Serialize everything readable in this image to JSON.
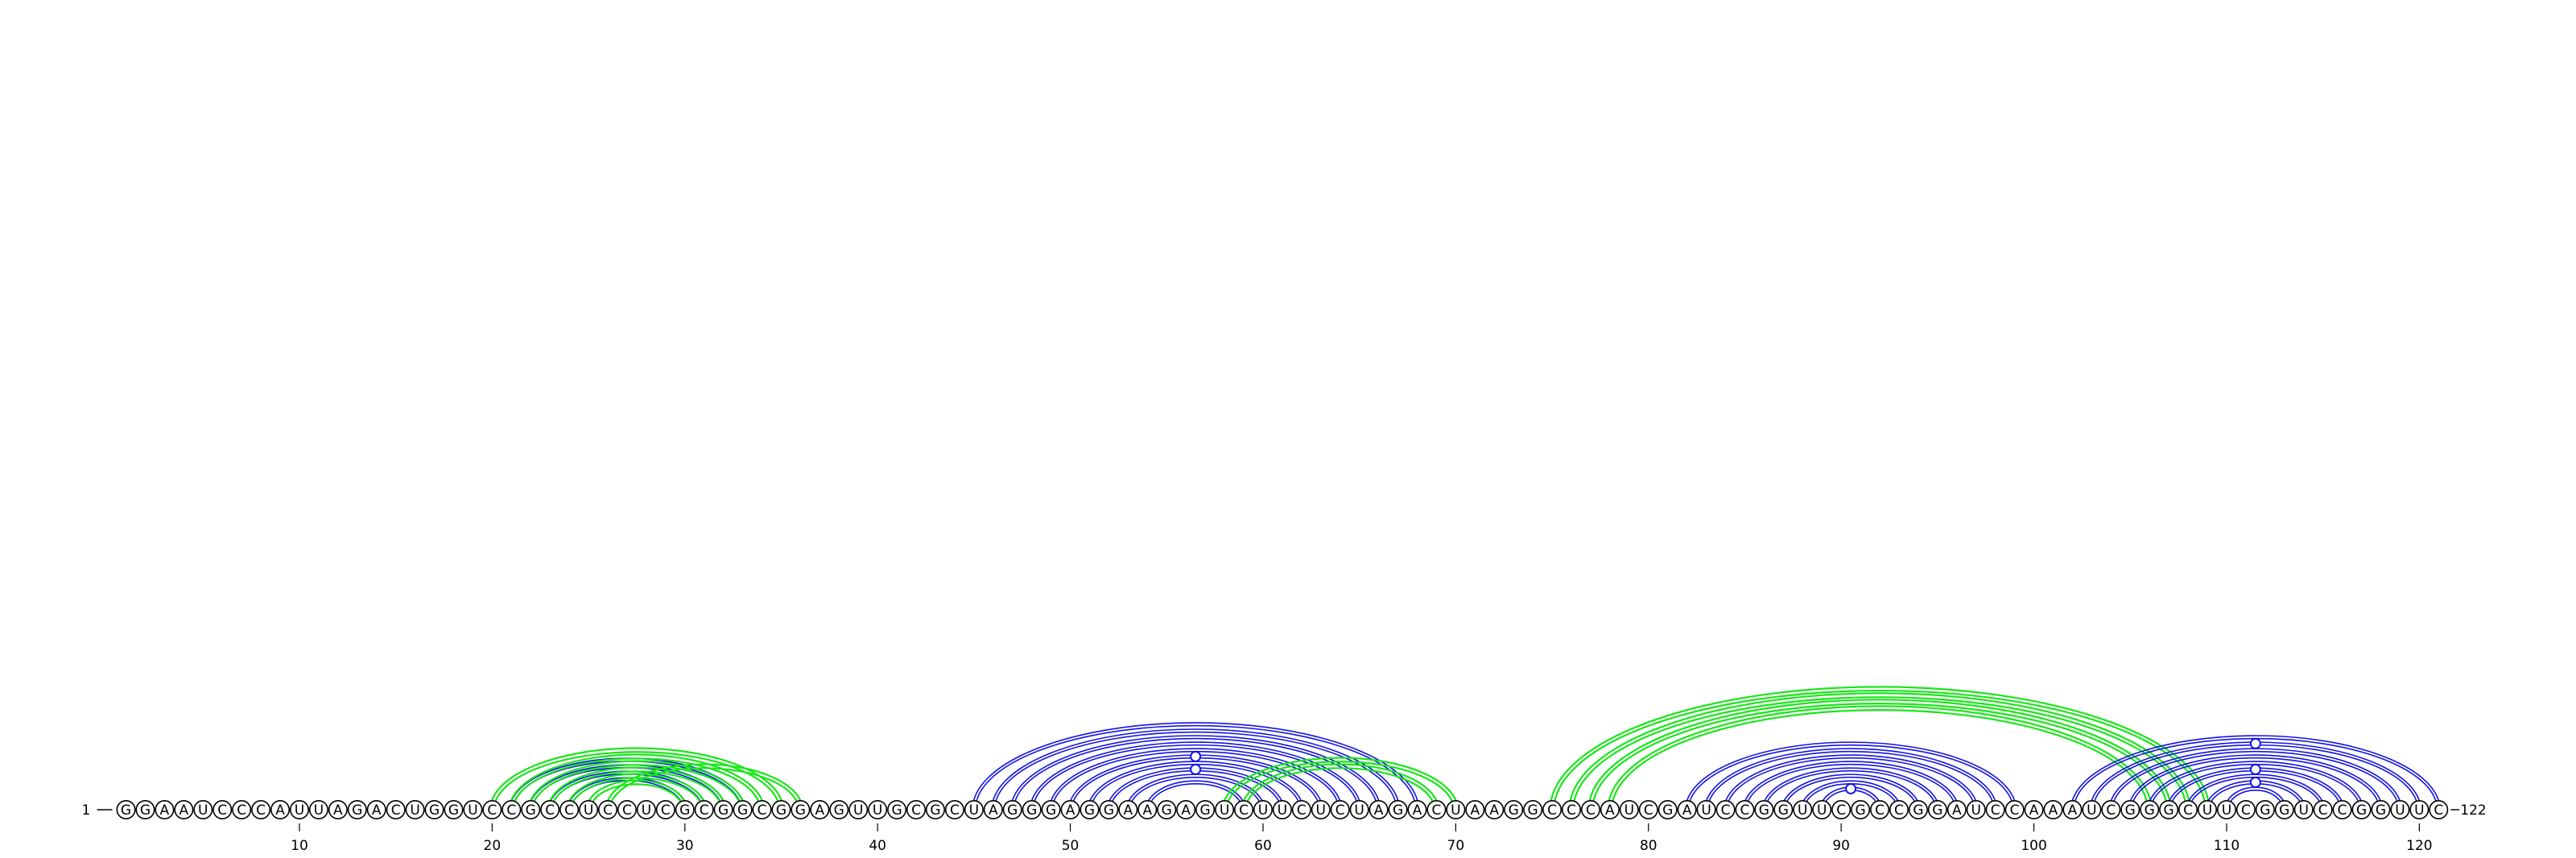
{
  "sequence": "GGAAUCCCAUUAGACUGGUCCGCCUCCUCGCGGCGGAGUUGCGCUAGGGAGGAAGAGUCUUCUCUAGACUAAGGCCCAUCGAUCCGGUUCGCCGGAUCCAAAUCGGGCUUCGGUCCGGUUC",
  "start_label": "1",
  "end_label": "122",
  "ticks": [
    10,
    20,
    30,
    40,
    50,
    60,
    70,
    80,
    90,
    100,
    110,
    120
  ],
  "colors": {
    "blue_arc": "#1414e6",
    "green_arc": "#19e619"
  },
  "arc_groups": [
    {
      "color": "blue",
      "pairs": [
        [
          21,
          33
        ],
        [
          22,
          32
        ],
        [
          23,
          31
        ],
        [
          24,
          30
        ]
      ]
    },
    {
      "color": "green",
      "pairs": [
        [
          20,
          35
        ],
        [
          21,
          34
        ],
        [
          22,
          33
        ],
        [
          23,
          32
        ],
        [
          24,
          31
        ],
        [
          25,
          30
        ],
        [
          26,
          36
        ]
      ]
    },
    {
      "color": "blue",
      "pairs": [
        [
          45,
          68
        ],
        [
          46,
          67
        ],
        [
          47,
          66
        ],
        [
          48,
          65
        ],
        [
          49,
          64
        ],
        [
          50,
          63
        ],
        [
          51,
          62
        ],
        [
          52,
          61
        ],
        [
          53,
          60
        ],
        [
          54,
          59
        ]
      ]
    },
    {
      "color": "green",
      "pairs": [
        [
          58,
          70
        ],
        [
          59,
          69
        ]
      ]
    },
    {
      "color": "blue",
      "pairs": [
        [
          82,
          99
        ],
        [
          83,
          98
        ],
        [
          84,
          97
        ],
        [
          85,
          96
        ],
        [
          86,
          95
        ],
        [
          87,
          94
        ],
        [
          88,
          93
        ],
        [
          89,
          92
        ]
      ]
    },
    {
      "color": "green",
      "pairs": [
        [
          75,
          109
        ],
        [
          76,
          108
        ],
        [
          77,
          107
        ],
        [
          78,
          106
        ]
      ]
    },
    {
      "color": "blue",
      "pairs": [
        [
          102,
          121
        ],
        [
          103,
          120
        ],
        [
          104,
          119
        ],
        [
          105,
          118
        ],
        [
          106,
          117
        ],
        [
          107,
          116
        ],
        [
          108,
          115
        ],
        [
          109,
          114
        ],
        [
          110,
          113
        ]
      ]
    }
  ],
  "noncanonical_markers": [
    {
      "pair": [
        50,
        63
      ],
      "color": "blue"
    },
    {
      "pair": [
        52,
        61
      ],
      "color": "blue"
    },
    {
      "pair": [
        89,
        92
      ],
      "color": "blue"
    },
    {
      "pair": [
        103,
        120
      ],
      "color": "blue"
    },
    {
      "pair": [
        107,
        116
      ],
      "color": "blue"
    },
    {
      "pair": [
        109,
        114
      ],
      "color": "blue"
    }
  ]
}
